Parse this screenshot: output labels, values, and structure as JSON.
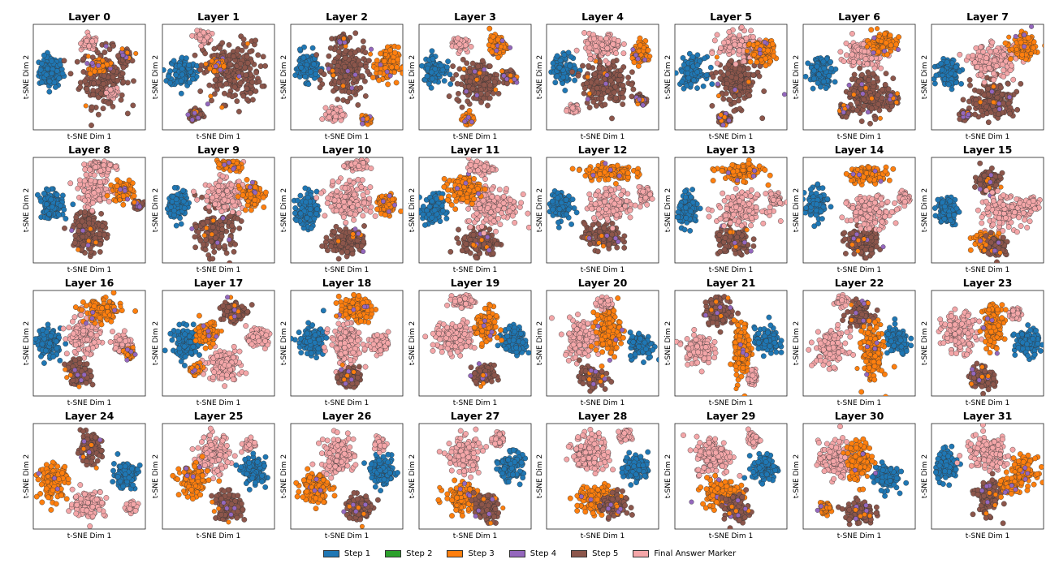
{
  "chart_data": {
    "type": "scatter",
    "layout": "grid of 32 t-SNE panels (4 rows x 8 columns)",
    "xlabel": "t-SNE Dim 1",
    "ylabel": "t-SNE Dim 2",
    "titles": [
      "Layer 0",
      "Layer 1",
      "Layer 2",
      "Layer 3",
      "Layer 4",
      "Layer 5",
      "Layer 6",
      "Layer 7",
      "Layer 8",
      "Layer 9",
      "Layer 10",
      "Layer 11",
      "Layer 12",
      "Layer 13",
      "Layer 14",
      "Layer 15",
      "Layer 16",
      "Layer 17",
      "Layer 18",
      "Layer 19",
      "Layer 20",
      "Layer 21",
      "Layer 22",
      "Layer 23",
      "Layer 24",
      "Layer 25",
      "Layer 26",
      "Layer 27",
      "Layer 28",
      "Layer 29",
      "Layer 30",
      "Layer 31"
    ],
    "legend": [
      {
        "label": "Step 1",
        "color": "#1f77b4"
      },
      {
        "label": "Step 2",
        "color": "#2ca02c"
      },
      {
        "label": "Step 3",
        "color": "#ff7f0e"
      },
      {
        "label": "Step 4",
        "color": "#9467bd"
      },
      {
        "label": "Step 5",
        "color": "#8c564b"
      },
      {
        "label": "Final Answer Marker",
        "color": "#f4a6a8"
      }
    ],
    "ticks": "none",
    "note": "Each panel shows point clusters per category in normalized t-SNE space (0-1 range, y up); cluster centers listed per panel"
  }
}
